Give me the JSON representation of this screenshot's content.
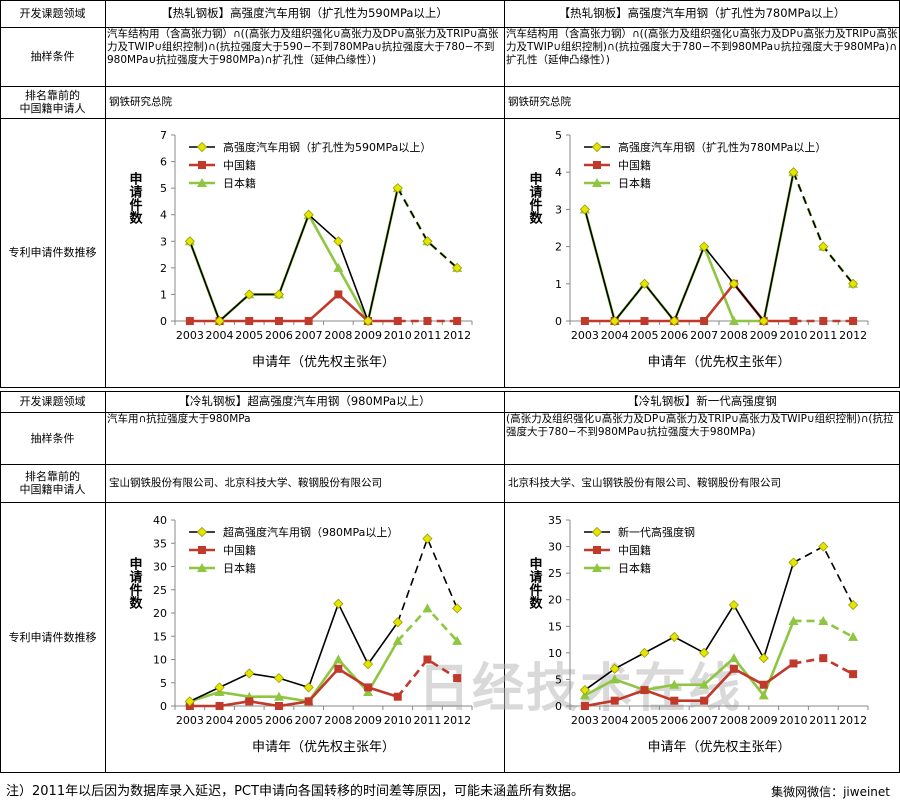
{
  "sections": [
    {
      "row_labels": {
        "field": "开发课题领域",
        "condition": "抽样条件",
        "applicant": "排名靠前的中国籍申请人",
        "applicant_l1": "排名靠前的",
        "applicant_l2": "中国籍申请人",
        "trend": "专利申请件数推移"
      },
      "left": {
        "title": "【热轧钢板】高强度汽车用钢（扩孔性为590MPa以上）",
        "condition": "汽车结构用（含高张力钢）∩((高张力及组织强化∪高张力及DP∪高张力及TRIP∪高张力及TWIP∪组织控制)∩(抗拉强度大于590−不到780MPa∪抗拉强度大于780−不到980MPa∪抗拉强度大于980MPa)∩扩孔性（延伸凸缘性）)",
        "applicant": "钢铁研究总院"
      },
      "right": {
        "title": "【热轧钢板】高强度汽车用钢（扩孔性为780MPa以上）",
        "condition": "汽车结构用（含高张力钢）∩((高张力及组织强化∪高张力及DP∪高张力及TRIP∪高张力及TWIP∪组织控制)∩(抗拉强度大于780−不到980MPa∪抗拉强度大于980MPa)∩扩孔性（延伸凸缘性）)",
        "applicant": "钢铁研究总院"
      }
    },
    {
      "row_labels": {
        "field": "开发课题领域",
        "condition": "抽样条件",
        "applicant": "排名靠前的中国籍申请人",
        "applicant_l1": "排名靠前的",
        "applicant_l2": "中国籍申请人",
        "trend": "专利申请件数推移"
      },
      "left": {
        "title": "【冷轧钢板】超高强度汽车用钢（980MPa以上）",
        "condition": "汽车用∩抗拉强度大于980MPa",
        "applicant": "宝山钢铁股份有限公司、北京科技大学、鞍钢股份有限公司"
      },
      "right": {
        "title": "【冷轧钢板】新一代高强度钢",
        "condition": "(高张力及组织强化∪高张力及DP∪高张力及TRIP∪高张力及TWIP∪组织控制)∩(抗拉强度大于780−不到980MPa∪抗拉强度大于980MPa)",
        "applicant": "北京科技大学、宝山钢铁股份有限公司、鞍钢股份有限公司"
      }
    }
  ],
  "footnote": "注）2011年以后因为数据库录入延迟，PCT申请向各国转移的时间差等原因，可能未涵盖所有数据。",
  "source": "集微网微信：jiweinet",
  "watermark": "日经技术在线",
  "colors": {
    "total": "#000000",
    "china": "#c0392b",
    "japan": "#8fc641",
    "marker_total": "#e5e600"
  },
  "chart_data": [
    {
      "type": "line",
      "x": [
        "2003",
        "2004",
        "2005",
        "2006",
        "2007",
        "2008",
        "2009",
        "2010",
        "2011",
        "2012"
      ],
      "ylim": [
        0,
        7
      ],
      "yticks": [
        0,
        1,
        2,
        3,
        4,
        5,
        6,
        7
      ],
      "xlabel": "申请年（优先权主张年）",
      "ylabel": "申请件数",
      "legend": "top-left",
      "dashed_from": "2010",
      "series": [
        {
          "name": "高强度汽车用钢（扩孔性为590MPa以上）",
          "values": [
            3,
            0,
            1,
            1,
            4,
            3,
            0,
            5,
            3,
            2
          ]
        },
        {
          "name": "中国籍",
          "values": [
            0,
            0,
            0,
            0,
            0,
            1,
            0,
            0,
            0,
            0
          ]
        },
        {
          "name": "日本籍",
          "values": [
            3,
            0,
            1,
            1,
            4,
            2,
            0,
            5,
            3,
            2
          ]
        }
      ]
    },
    {
      "type": "line",
      "x": [
        "2003",
        "2004",
        "2005",
        "2006",
        "2007",
        "2008",
        "2009",
        "2010",
        "2011",
        "2012"
      ],
      "ylim": [
        0,
        5
      ],
      "yticks": [
        0,
        1,
        2,
        3,
        4,
        5
      ],
      "xlabel": "申请年（优先权主张年）",
      "ylabel": "申请件数",
      "legend": "top-left",
      "dashed_from": "2010",
      "series": [
        {
          "name": "高强度汽车用钢（扩孔性为780MPa以上）",
          "values": [
            3,
            0,
            1,
            0,
            2,
            1,
            0,
            4,
            2,
            1
          ]
        },
        {
          "name": "中国籍",
          "values": [
            0,
            0,
            0,
            0,
            0,
            1,
            0,
            0,
            0,
            0
          ]
        },
        {
          "name": "日本籍",
          "values": [
            3,
            0,
            1,
            0,
            2,
            0,
            0,
            4,
            2,
            1
          ]
        }
      ]
    },
    {
      "type": "line",
      "x": [
        "2003",
        "2004",
        "2005",
        "2006",
        "2007",
        "2008",
        "2009",
        "2010",
        "2011",
        "2012"
      ],
      "ylim": [
        0,
        40
      ],
      "yticks": [
        0,
        5,
        10,
        15,
        20,
        25,
        30,
        35,
        40
      ],
      "xlabel": "申请年（优先权主张年）",
      "ylabel": "申请件数",
      "legend": "top-left",
      "dashed_from": "2010",
      "series": [
        {
          "name": "超高强度汽车用钢（980MPa以上）",
          "values": [
            1,
            4,
            7,
            6,
            4,
            22,
            9,
            18,
            36,
            21
          ]
        },
        {
          "name": "中国籍",
          "values": [
            0,
            0,
            1,
            0,
            1,
            8,
            4,
            2,
            10,
            6
          ]
        },
        {
          "name": "日本籍",
          "values": [
            1,
            3,
            2,
            2,
            1,
            10,
            3,
            14,
            21,
            14
          ]
        }
      ]
    },
    {
      "type": "line",
      "x": [
        "2003",
        "2004",
        "2005",
        "2006",
        "2007",
        "2008",
        "2009",
        "2010",
        "2011",
        "2012"
      ],
      "ylim": [
        0,
        35
      ],
      "yticks": [
        0,
        5,
        10,
        15,
        20,
        25,
        30,
        35
      ],
      "xlabel": "申请年（优先权主张年）",
      "ylabel": "申请件数",
      "legend": "top-left",
      "dashed_from": "2010",
      "series": [
        {
          "name": "新一代高强度钢",
          "values": [
            3,
            7,
            10,
            13,
            10,
            19,
            9,
            27,
            30,
            19
          ]
        },
        {
          "name": "中国籍",
          "values": [
            0,
            1,
            3,
            1,
            1,
            7,
            4,
            8,
            9,
            6
          ]
        },
        {
          "name": "日本籍",
          "values": [
            2,
            5,
            3,
            4,
            4,
            9,
            2,
            16,
            16,
            13
          ]
        }
      ]
    }
  ]
}
